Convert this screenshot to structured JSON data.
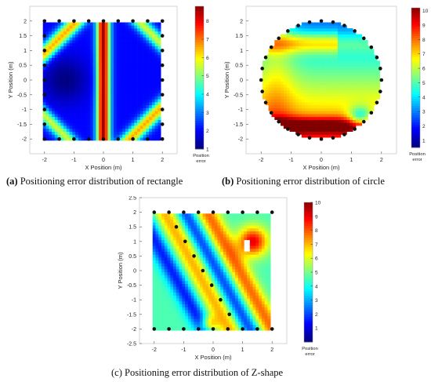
{
  "colors": {
    "frame": "#ffffff",
    "marker": "#111111"
  },
  "colormap": "jet",
  "chart_data": [
    {
      "type": "heatmap",
      "id": "a",
      "caption_label": "(a)",
      "caption_text": " Positioning error distribution of rectangle",
      "xlabel": "X Position (m)",
      "ylabel": "Y Position (m)",
      "xlim": [
        -2.5,
        2.5
      ],
      "ylim": [
        -2.5,
        2.5
      ],
      "xticks": [
        -2,
        -1,
        0,
        1,
        2
      ],
      "yticks": [
        -2,
        -1.5,
        -1,
        -0.5,
        0,
        0.5,
        1,
        1.5,
        2
      ],
      "ytick_labels": [
        "-2",
        "-1.5",
        "-1",
        "-0.5",
        "0",
        "0.5",
        "1",
        "1.5",
        "2"
      ],
      "xtick_labels": [
        "-2",
        "-1",
        "0",
        "1",
        "2"
      ],
      "colorbar": {
        "min": 1,
        "max": 8.8,
        "ticks": [
          1,
          2,
          3,
          4,
          5,
          6,
          7,
          8
        ],
        "tick_labels": [
          "1",
          "2",
          "3",
          "4",
          "5",
          "6",
          "7",
          "8"
        ],
        "label_line1": "Position",
        "label_line2": "error"
      },
      "shape": "rectangle",
      "anchors": [
        [
          -2,
          2
        ],
        [
          -1.5,
          2
        ],
        [
          -1,
          2
        ],
        [
          -0.5,
          2
        ],
        [
          0,
          2
        ],
        [
          0.5,
          2
        ],
        [
          1,
          2
        ],
        [
          1.5,
          2
        ],
        [
          2,
          2
        ],
        [
          -2,
          -2
        ],
        [
          -1.5,
          -2
        ],
        [
          -1,
          -2
        ],
        [
          -0.5,
          -2
        ],
        [
          0,
          -2
        ],
        [
          0.5,
          -2
        ],
        [
          1,
          -2
        ],
        [
          1.5,
          -2
        ],
        [
          2,
          -2
        ],
        [
          -2,
          1.5
        ],
        [
          -2,
          1
        ],
        [
          -2,
          0.5
        ],
        [
          -2,
          0
        ],
        [
          -2,
          -0.5
        ],
        [
          -2,
          -1
        ],
        [
          -2,
          -1.5
        ],
        [
          2,
          1.5
        ],
        [
          2,
          1
        ],
        [
          2,
          0.5
        ],
        [
          2,
          0
        ],
        [
          2,
          -0.5
        ],
        [
          2,
          -1
        ],
        [
          2,
          -1.5
        ]
      ]
    },
    {
      "type": "heatmap",
      "id": "b",
      "caption_label": "(b)",
      "caption_text": " Positioning error distribution of circle",
      "xlabel": "X Position (m)",
      "ylabel": "Y Position (m)",
      "xlim": [
        -2.5,
        2.5
      ],
      "ylim": [
        -2.5,
        2.5
      ],
      "xticks": [
        -2,
        -1,
        0,
        1,
        2
      ],
      "yticks": [
        -2,
        -1.5,
        -1,
        -0.5,
        0,
        0.5,
        1,
        1.5,
        2
      ],
      "ytick_labels": [
        "-2",
        "-1.5",
        "-1",
        "-0.5",
        "0",
        "0.5",
        "1",
        "1.5",
        "2"
      ],
      "xtick_labels": [
        "-2",
        "-1",
        "0",
        "1",
        "2"
      ],
      "colorbar": {
        "min": 0.5,
        "max": 10.2,
        "ticks": [
          1,
          2,
          3,
          4,
          5,
          6,
          7,
          8,
          9,
          10
        ],
        "tick_labels": [
          "1",
          "2",
          "3",
          "4",
          "5",
          "6",
          "7",
          "8",
          "9",
          "10"
        ],
        "label_line1": "Position",
        "label_line2": "error"
      },
      "shape": "circle",
      "circle_radius": 2,
      "anchor_count": 32
    },
    {
      "type": "heatmap",
      "id": "c",
      "caption_label": "(c)",
      "caption_text": " Positioning error distribution of Z-shape",
      "xlabel": "X Position (m)",
      "ylabel": "Y Position (m)",
      "xlim": [
        -2.5,
        2.5
      ],
      "ylim": [
        -2.5,
        2.5
      ],
      "xticks": [
        -2,
        -1,
        0,
        1,
        2
      ],
      "yticks": [
        -2.5,
        -2,
        -1.5,
        -1,
        -0.5,
        0,
        0.5,
        1,
        1.5,
        2,
        2.5
      ],
      "ytick_labels": [
        "-2.5",
        "-2",
        "-1.5",
        "-1",
        "-0.5",
        "0",
        "0.5",
        "1",
        "1.5",
        "2",
        "2.5"
      ],
      "xtick_labels": [
        "-2",
        "-1",
        "0",
        "1",
        "2"
      ],
      "colorbar": {
        "min": 0,
        "max": 10,
        "ticks": [
          1,
          2,
          3,
          4,
          5,
          6,
          7,
          8,
          9,
          10
        ],
        "tick_labels": [
          "1",
          "2",
          "3",
          "4",
          "5",
          "6",
          "7",
          "8",
          "9",
          "10"
        ],
        "label_line1": "Position",
        "label_line2": "error"
      },
      "shape": "zshape",
      "anchors": [
        [
          -2,
          2
        ],
        [
          -1.5,
          2
        ],
        [
          -1,
          2
        ],
        [
          -0.5,
          2
        ],
        [
          0,
          2
        ],
        [
          0.5,
          2
        ],
        [
          1,
          2
        ],
        [
          1.5,
          2
        ],
        [
          2,
          2
        ],
        [
          -2,
          -2
        ],
        [
          -1.5,
          -2
        ],
        [
          -1,
          -2
        ],
        [
          -0.5,
          -2
        ],
        [
          0,
          -2
        ],
        [
          0.5,
          -2
        ],
        [
          1,
          -2
        ],
        [
          1.5,
          -2
        ],
        [
          2,
          -2
        ],
        [
          -1.25,
          1.5
        ],
        [
          -0.95,
          1.0
        ],
        [
          -0.65,
          0.5
        ],
        [
          -0.35,
          0
        ],
        [
          -0.05,
          -0.5
        ],
        [
          0.25,
          -1.0
        ],
        [
          0.55,
          -1.5
        ]
      ]
    }
  ]
}
